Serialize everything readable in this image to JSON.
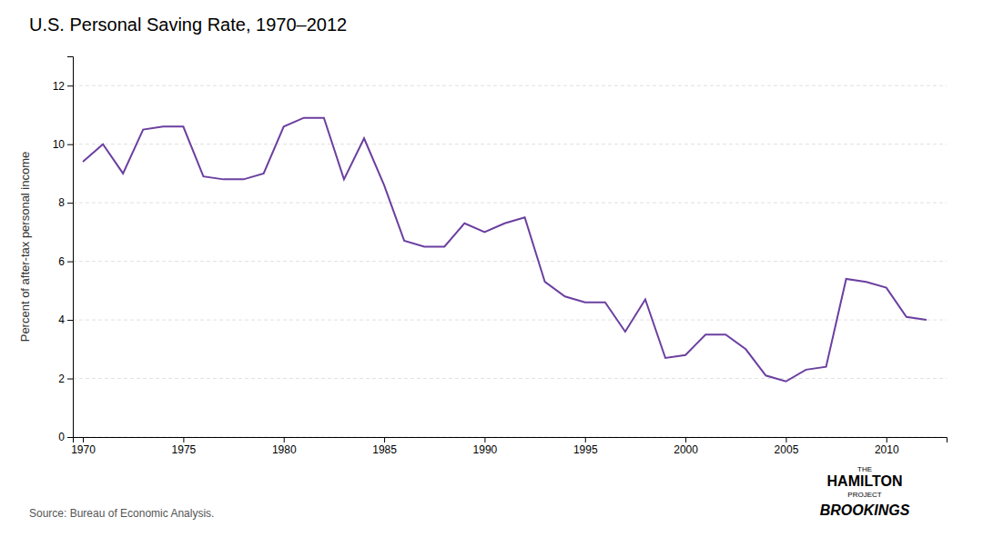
{
  "chart_data": {
    "type": "line",
    "title": "U.S. Personal Saving Rate, 1970–2012",
    "y_label": "Percent of after-tax personal income",
    "annotations": [
      "Source: Bureau of Economic Analysis.",
      "THE",
      "HAMILTON",
      "PROJECT",
      "BROOKINGS"
    ],
    "color": "#6b3fa0",
    "grid": true,
    "xlim": [
      1969.5,
      2013
    ],
    "ylim": [
      0,
      13
    ],
    "xticks": [
      1970,
      1975,
      1980,
      1985,
      1990,
      1995,
      2000,
      2005,
      2010
    ],
    "yticks": [
      0,
      2,
      4,
      6,
      8,
      10,
      12
    ],
    "x": [
      1970,
      1971,
      1972,
      1973,
      1974,
      1975,
      1976,
      1977,
      1978,
      1979,
      1980,
      1981,
      1982,
      1983,
      1984,
      1985,
      1986,
      1987,
      1988,
      1989,
      1990,
      1991,
      1992,
      1993,
      1994,
      1995,
      1996,
      1997,
      1998,
      1999,
      2000,
      2001,
      2002,
      2003,
      2004,
      2005,
      2006,
      2007,
      2008,
      2009,
      2010,
      2011,
      2012
    ],
    "values": [
      9.4,
      10.0,
      9.0,
      10.5,
      10.6,
      10.6,
      8.9,
      8.8,
      8.8,
      9.0,
      10.6,
      10.9,
      10.9,
      8.8,
      10.2,
      8.6,
      6.7,
      6.5,
      6.5,
      7.3,
      7.0,
      7.3,
      7.5,
      5.3,
      4.8,
      4.6,
      4.6,
      3.6,
      4.7,
      2.7,
      2.8,
      3.5,
      3.5,
      3.0,
      2.1,
      1.9,
      2.3,
      2.4,
      5.4,
      5.3,
      5.1,
      4.1,
      4.0
    ]
  }
}
